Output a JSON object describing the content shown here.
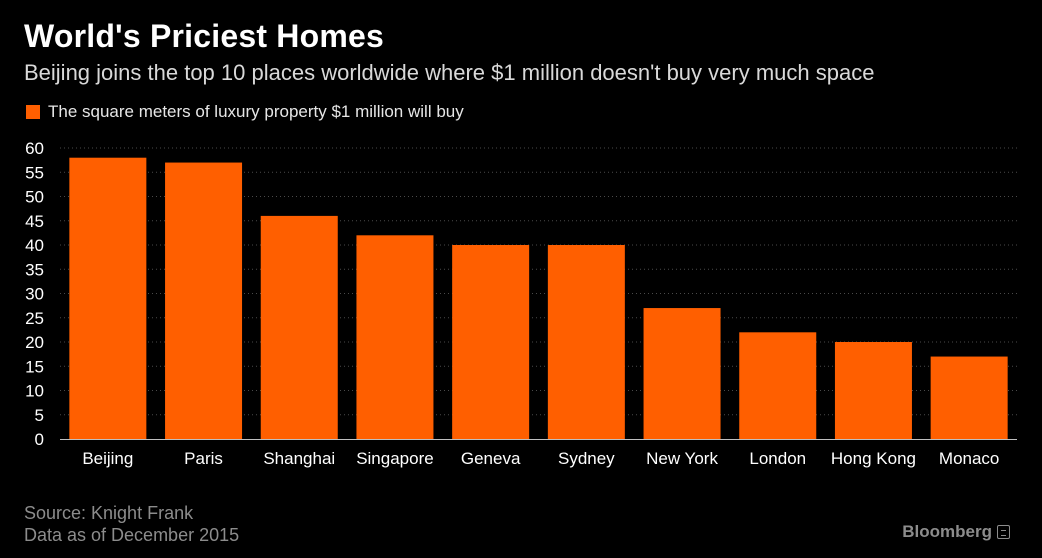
{
  "title": "World's Priciest Homes",
  "subtitle": "Beijing joins the top 10 places worldwide where $1 million doesn't buy very much space",
  "legend": {
    "label": "The square meters of luxury property $1 million will buy",
    "color": "#ff5f00"
  },
  "source_line1": "Source: Knight Frank",
  "source_line2": "Data as of December 2015",
  "brand": "Bloomberg",
  "chart_data": {
    "type": "bar",
    "categories": [
      "Beijing",
      "Paris",
      "Shanghai",
      "Singapore",
      "Geneva",
      "Sydney",
      "New York",
      "London",
      "Hong Kong",
      "Monaco"
    ],
    "series": [
      {
        "name": "The square meters of luxury property $1 million will buy",
        "values": [
          58,
          57,
          46,
          42,
          40,
          40,
          27,
          22,
          20,
          17
        ]
      }
    ],
    "title": "World's Priciest Homes",
    "subtitle": "Beijing joins the top 10 places worldwide where $1 million doesn't buy very much space",
    "xlabel": "",
    "ylabel": "",
    "ylim": [
      0,
      60
    ],
    "yticks": [
      0,
      5,
      10,
      15,
      20,
      25,
      30,
      35,
      40,
      45,
      50,
      55,
      60
    ],
    "grid": true,
    "legend_position": "top-left",
    "bar_color": "#ff5f00",
    "background": "#000000"
  }
}
